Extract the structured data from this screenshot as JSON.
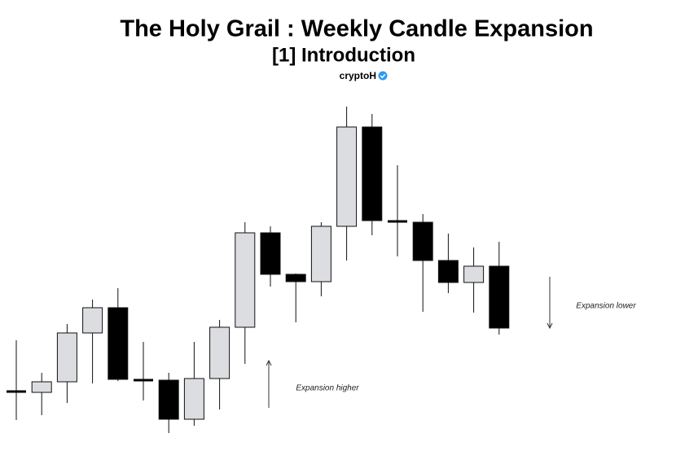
{
  "chart_data": {
    "type": "candlestick",
    "title": "The Holy Grail : Weekly Candle Expansion",
    "subtitle": "[1] Introduction",
    "author": "cryptoH",
    "up_color": "#dcdde0",
    "down_color": "#000000",
    "ylim": [
      0,
      570
    ],
    "open": [
      89,
      88,
      101,
      161,
      192,
      103,
      103,
      55,
      105,
      168,
      284,
      233,
      224,
      292,
      414,
      298,
      297,
      250,
      223,
      243
    ],
    "high": [
      152,
      112,
      172,
      202,
      216,
      150,
      112,
      150,
      177,
      297,
      292,
      234,
      297,
      439,
      430,
      367,
      307,
      283,
      266,
      273
    ],
    "low": [
      54,
      60,
      75,
      99,
      102,
      78,
      38,
      47,
      67,
      123,
      218,
      174,
      206,
      250,
      281,
      255,
      187,
      210,
      186,
      159
    ],
    "close": [
      89,
      101,
      161,
      192,
      104,
      103,
      55,
      105,
      168,
      284,
      233,
      224,
      292,
      414,
      299,
      298,
      250,
      223,
      243,
      167
    ],
    "annotations": [
      "Expansion higher",
      "Expansion lower"
    ]
  }
}
